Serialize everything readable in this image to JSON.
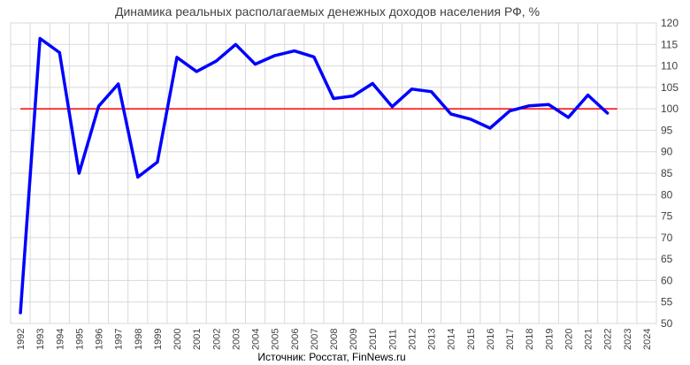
{
  "chart_data": {
    "type": "line",
    "title": "Динамика реальных располагаемых денежных доходов населения РФ, %",
    "source_note": "Источник: Росстат, FinNews.ru",
    "categories": [
      "1992",
      "1993",
      "1994",
      "1995",
      "1996",
      "1997",
      "1998",
      "1999",
      "2000",
      "2001",
      "2002",
      "2003",
      "2004",
      "2005",
      "2006",
      "2007",
      "2008",
      "2009",
      "2010",
      "2011",
      "2012",
      "2013",
      "2014",
      "2015",
      "2016",
      "2017",
      "2018",
      "2019",
      "2020",
      "2021",
      "2022",
      "2023",
      "2024"
    ],
    "series": [
      {
        "values": [
          52.5,
          116.4,
          113.1,
          85.0,
          100.6,
          105.8,
          84.1,
          87.6,
          112.0,
          108.7,
          111.1,
          115.0,
          110.4,
          112.4,
          113.5,
          112.1,
          102.4,
          103.0,
          105.9,
          100.5,
          104.6,
          104.0,
          98.8,
          97.6,
          95.5,
          99.5,
          100.7,
          101.0,
          98.0,
          103.2,
          99.0,
          null,
          null
        ],
        "color": "#0000ff"
      }
    ],
    "reference_line": {
      "value": 100,
      "color": "#ff0000"
    },
    "ylim": [
      50,
      120
    ],
    "yticks": [
      50,
      55,
      60,
      65,
      70,
      75,
      80,
      85,
      90,
      95,
      100,
      105,
      110,
      115,
      120
    ],
    "y_axis_side": "right",
    "grid": true,
    "legend": "none"
  }
}
